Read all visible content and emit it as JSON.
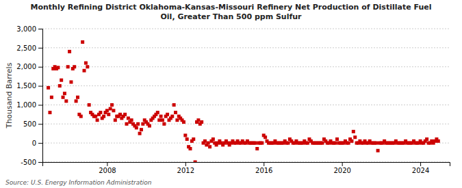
{
  "chart_data": {
    "type": "scatter",
    "title": "Monthly Refining District Oklahoma-Kansas-Missouri Refinery Net Production of Distillate Fuel\nOil, Greater Than 500 ppm Sulfur",
    "y_label": "Thousand Barrels",
    "annotations": [
      "Source: U.S. Energy Information Administration"
    ],
    "color": "#cc0000",
    "marker": "square",
    "grid": "y",
    "xlim": [
      2004.7,
      2025.5
    ],
    "xticks": [
      2008,
      2012,
      2016,
      2020,
      2024
    ],
    "ylim": [
      -500,
      3000
    ],
    "yticks": [
      -500,
      0,
      500,
      {
        "value": 1000,
        "label": "1,000"
      },
      {
        "value": 1500,
        "label": "1,500"
      },
      {
        "value": 2000,
        "label": "2,000"
      },
      {
        "value": 2500,
        "label": "2,500"
      },
      {
        "value": 3000,
        "label": "3,000"
      }
    ],
    "x": [
      2005,
      2005.083,
      2005.167,
      2005.25,
      2005.333,
      2005.417,
      2005.5,
      2005.583,
      2005.667,
      2005.75,
      2005.833,
      2005.917,
      2006,
      2006.083,
      2006.167,
      2006.25,
      2006.333,
      2006.417,
      2006.5,
      2006.583,
      2006.667,
      2006.75,
      2006.833,
      2006.917,
      2007,
      2007.083,
      2007.167,
      2007.25,
      2007.333,
      2007.417,
      2007.5,
      2007.583,
      2007.667,
      2007.75,
      2007.833,
      2007.917,
      2008,
      2008.083,
      2008.167,
      2008.25,
      2008.333,
      2008.417,
      2008.5,
      2008.583,
      2008.667,
      2008.75,
      2008.833,
      2008.917,
      2009,
      2009.083,
      2009.167,
      2009.25,
      2009.333,
      2009.417,
      2009.5,
      2009.583,
      2009.667,
      2009.75,
      2009.833,
      2009.917,
      2010,
      2010.083,
      2010.167,
      2010.25,
      2010.333,
      2010.417,
      2010.5,
      2010.583,
      2010.667,
      2010.75,
      2010.833,
      2010.917,
      2011,
      2011.083,
      2011.167,
      2011.25,
      2011.333,
      2011.417,
      2011.5,
      2011.583,
      2011.667,
      2011.75,
      2011.833,
      2011.917,
      2012,
      2012.083,
      2012.167,
      2012.25,
      2012.333,
      2012.417,
      2012.5,
      2012.583,
      2012.667,
      2012.75,
      2012.833,
      2012.917,
      2013,
      2013.083,
      2013.167,
      2013.25,
      2013.333,
      2013.417,
      2013.5,
      2013.583,
      2013.667,
      2013.75,
      2013.833,
      2013.917,
      2014,
      2014.083,
      2014.167,
      2014.25,
      2014.333,
      2014.417,
      2014.5,
      2014.583,
      2014.667,
      2014.75,
      2014.833,
      2014.917,
      2015,
      2015.083,
      2015.167,
      2015.25,
      2015.333,
      2015.417,
      2015.5,
      2015.583,
      2015.667,
      2015.75,
      2015.833,
      2015.917,
      2016,
      2016.083,
      2016.167,
      2016.25,
      2016.333,
      2016.417,
      2016.5,
      2016.583,
      2016.667,
      2016.75,
      2016.833,
      2016.917,
      2017,
      2017.083,
      2017.167,
      2017.25,
      2017.333,
      2017.417,
      2017.5,
      2017.583,
      2017.667,
      2017.75,
      2017.833,
      2017.917,
      2018,
      2018.083,
      2018.167,
      2018.25,
      2018.333,
      2018.417,
      2018.5,
      2018.583,
      2018.667,
      2018.75,
      2018.833,
      2018.917,
      2019,
      2019.083,
      2019.167,
      2019.25,
      2019.333,
      2019.417,
      2019.5,
      2019.583,
      2019.667,
      2019.75,
      2019.833,
      2019.917,
      2020,
      2020.083,
      2020.167,
      2020.25,
      2020.333,
      2020.417,
      2020.5,
      2020.583,
      2020.667,
      2020.75,
      2020.833,
      2020.917,
      2021,
      2021.083,
      2021.167,
      2021.25,
      2021.333,
      2021.417,
      2021.5,
      2021.583,
      2021.667,
      2021.75,
      2021.833,
      2021.917,
      2022,
      2022.083,
      2022.167,
      2022.25,
      2022.333,
      2022.417,
      2022.5,
      2022.583,
      2022.667,
      2022.75,
      2022.833,
      2022.917,
      2023,
      2023.083,
      2023.167,
      2023.25,
      2023.333,
      2023.417,
      2023.5,
      2023.583,
      2023.667,
      2023.75,
      2023.833,
      2023.917,
      2024,
      2024.083,
      2024.167,
      2024.25,
      2024.333,
      2024.417,
      2024.5,
      2024.583,
      2024.667,
      2024.75,
      2024.833,
      2024.917
    ],
    "values": [
      1450,
      800,
      1200,
      1950,
      2000,
      1950,
      1980,
      1500,
      1650,
      1200,
      1300,
      1100,
      2000,
      2400,
      1600,
      1950,
      2000,
      1100,
      1200,
      750,
      700,
      2650,
      1900,
      2100,
      2000,
      1000,
      800,
      750,
      700,
      700,
      600,
      750,
      800,
      650,
      700,
      800,
      850,
      750,
      900,
      1000,
      850,
      600,
      700,
      700,
      750,
      650,
      700,
      750,
      500,
      650,
      550,
      600,
      500,
      450,
      400,
      500,
      250,
      350,
      500,
      600,
      550,
      500,
      450,
      600,
      650,
      700,
      750,
      800,
      600,
      700,
      600,
      500,
      700,
      750,
      600,
      650,
      700,
      1000,
      800,
      600,
      700,
      650,
      600,
      550,
      200,
      100,
      -100,
      -150,
      50,
      100,
      -500,
      550,
      600,
      500,
      550,
      0,
      50,
      -50,
      0,
      -100,
      50,
      100,
      0,
      -50,
      0,
      50,
      0,
      -50,
      0,
      50,
      0,
      -50,
      0,
      50,
      0,
      0,
      50,
      0,
      0,
      50,
      0,
      0,
      50,
      0,
      0,
      0,
      0,
      0,
      -150,
      0,
      0,
      0,
      200,
      150,
      50,
      0,
      0,
      0,
      0,
      50,
      0,
      0,
      0,
      0,
      0,
      50,
      0,
      0,
      100,
      50,
      0,
      0,
      50,
      0,
      0,
      0,
      0,
      50,
      0,
      0,
      100,
      50,
      0,
      0,
      0,
      0,
      0,
      0,
      0,
      100,
      50,
      0,
      0,
      50,
      0,
      0,
      0,
      100,
      0,
      0,
      0,
      0,
      50,
      0,
      0,
      100,
      50,
      300,
      150,
      0,
      0,
      50,
      0,
      0,
      50,
      0,
      0,
      50,
      0,
      0,
      0,
      0,
      -200,
      0,
      0,
      0,
      50,
      0,
      0,
      0,
      0,
      0,
      0,
      50,
      0,
      0,
      0,
      0,
      0,
      50,
      0,
      0,
      0,
      0,
      50,
      0,
      0,
      0,
      50,
      0,
      0,
      50,
      100,
      0,
      0,
      50,
      0,
      50,
      100,
      50
    ]
  }
}
